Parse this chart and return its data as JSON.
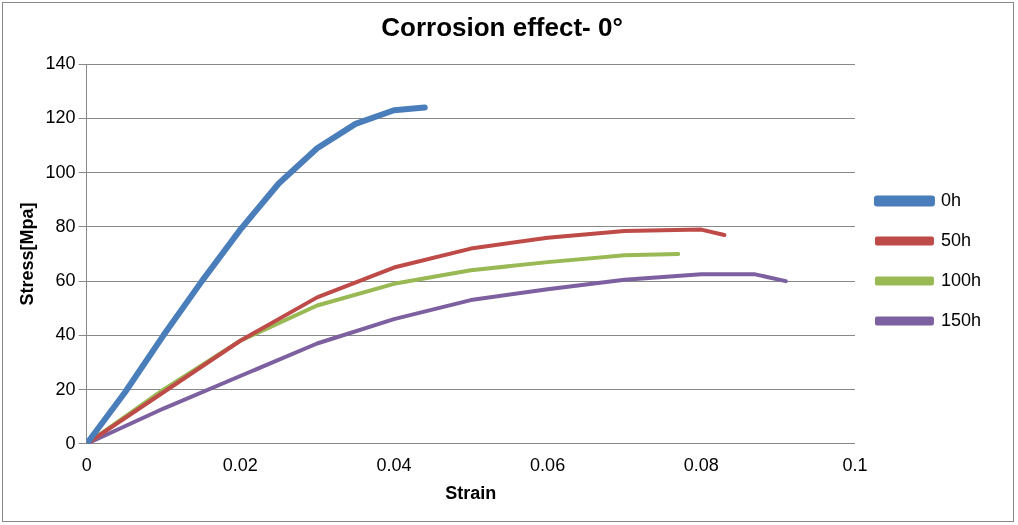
{
  "chart_data": {
    "type": "line",
    "title": "Corrosion effect- 0°",
    "xlabel": "Strain",
    "ylabel": "Stress[Mpa]",
    "xlim": [
      0,
      0.1
    ],
    "xticks": [
      0,
      0.02,
      0.04,
      0.06,
      0.08,
      0.1
    ],
    "ylim": [
      0,
      140
    ],
    "yticks": [
      0,
      20,
      40,
      60,
      80,
      100,
      120,
      140
    ],
    "grid": "y",
    "legend": "right",
    "marker": "none",
    "line_style": "solid",
    "series": [
      {
        "name": "0h",
        "color": "#4a7ebb",
        "x": [
          0,
          0.005,
          0.01,
          0.015,
          0.02,
          0.025,
          0.03,
          0.035,
          0.04,
          0.044
        ],
        "values": [
          0,
          19,
          40,
          60,
          79,
          96,
          109,
          118,
          123,
          124
        ]
      },
      {
        "name": "50h",
        "color": "#be4b48",
        "x": [
          0,
          0.01,
          0.02,
          0.03,
          0.04,
          0.05,
          0.06,
          0.07,
          0.08,
          0.083
        ],
        "values": [
          0,
          19,
          38,
          54,
          65,
          72,
          76,
          78.5,
          79,
          77
        ]
      },
      {
        "name": "100h",
        "color": "#98b954",
        "x": [
          0,
          0.01,
          0.02,
          0.03,
          0.04,
          0.05,
          0.06,
          0.07,
          0.077
        ],
        "values": [
          0,
          20,
          38,
          51,
          59,
          64,
          67,
          69.5,
          70
        ]
      },
      {
        "name": "150h",
        "color": "#7d60a0",
        "x": [
          0,
          0.01,
          0.02,
          0.03,
          0.04,
          0.05,
          0.06,
          0.07,
          0.08,
          0.087,
          0.091
        ],
        "values": [
          0,
          13,
          25,
          37,
          46,
          53,
          57,
          60.5,
          62.5,
          62.5,
          60
        ]
      }
    ]
  }
}
